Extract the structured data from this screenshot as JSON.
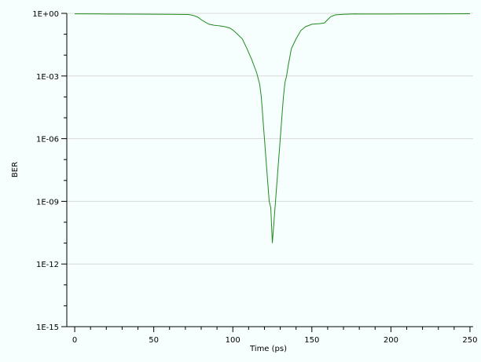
{
  "chart_data": {
    "type": "line",
    "title": "",
    "xlabel": "Time (ps)",
    "ylabel": "BER",
    "xlim": [
      -5,
      252
    ],
    "ylim": [
      1e-15,
      1
    ],
    "y_scale": "log",
    "x_ticks": [
      0,
      50,
      100,
      150,
      200,
      250
    ],
    "x_tick_labels": [
      "0",
      "50",
      "100",
      "150",
      "200",
      "250"
    ],
    "y_ticks": [
      1e-15,
      1e-12,
      1e-09,
      1e-06,
      0.001,
      1
    ],
    "y_tick_labels": [
      "1E-15",
      "1E-12",
      "1E-09",
      "1E-06",
      "1E-03",
      "1E+00"
    ],
    "grid": true,
    "legend": "none",
    "colors": {
      "line": "#1e8c1e",
      "background": "#f7fffe",
      "grid": "#d8d8d8",
      "axis": "#000000"
    },
    "series": [
      {
        "x": [
          0,
          20,
          40,
          60,
          72,
          75,
          78,
          80,
          82,
          85,
          88,
          90,
          92,
          95,
          98,
          100,
          103,
          106,
          109,
          112,
          115,
          117,
          118,
          119,
          120,
          121,
          122,
          123,
          124,
          125,
          126,
          127,
          128,
          129,
          130,
          131,
          132,
          133,
          134,
          135,
          137,
          140,
          143,
          146,
          150,
          155,
          158,
          160,
          162,
          165,
          170,
          175,
          177,
          180,
          200,
          220,
          240,
          250
        ],
        "y": [
          0.95,
          0.93,
          0.92,
          0.9,
          0.88,
          0.8,
          0.65,
          0.5,
          0.4,
          0.3,
          0.27,
          0.26,
          0.25,
          0.23,
          0.2,
          0.16,
          0.1,
          0.06,
          0.02,
          0.006,
          0.0015,
          0.0004,
          0.0001,
          1e-05,
          1e-06,
          1e-07,
          1e-08,
          1e-09,
          5e-10,
          1e-11,
          1e-10,
          1e-09,
          1e-08,
          1e-07,
          1e-06,
          1e-05,
          0.0001,
          0.0005,
          0.001,
          0.003,
          0.02,
          0.06,
          0.15,
          0.23,
          0.3,
          0.32,
          0.35,
          0.5,
          0.7,
          0.85,
          0.9,
          0.93,
          0.94,
          0.93,
          0.93,
          0.94,
          0.95,
          0.96
        ]
      }
    ]
  }
}
